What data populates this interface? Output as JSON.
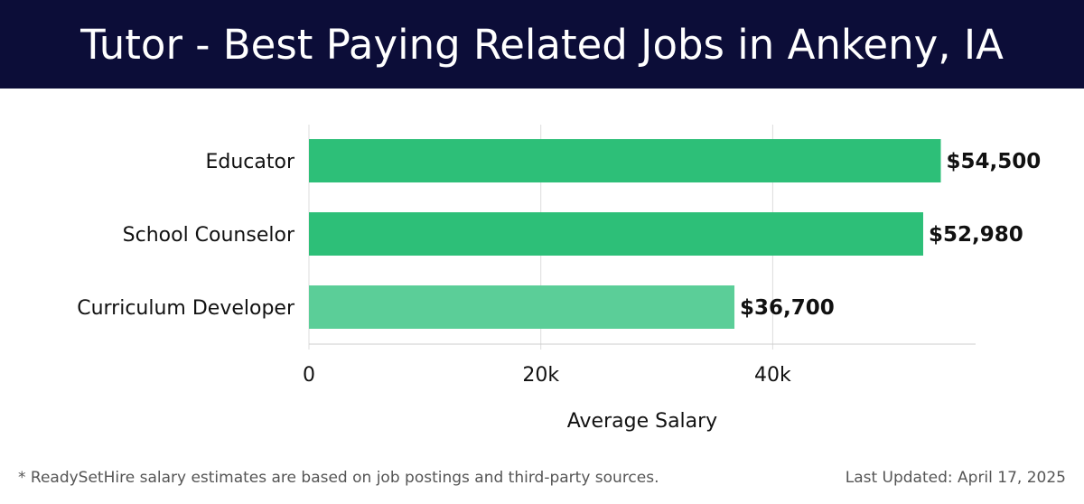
{
  "header": {
    "title": "Tutor - Best Paying Related Jobs in Ankeny, IA"
  },
  "footer": {
    "note": "* ReadySetHire salary estimates are based on job postings and third-party sources.",
    "updated": "Last Updated: April 17, 2025"
  },
  "colors": {
    "header_bg": "#0c0d38",
    "bar": "#2dbf78",
    "bar_light": "#5bce98",
    "grid": "#dddddd"
  },
  "chart_data": {
    "type": "bar",
    "orientation": "horizontal",
    "categories": [
      "Educator",
      "School Counselor",
      "Curriculum Developer"
    ],
    "values": [
      54500,
      52980,
      36700
    ],
    "value_labels": [
      "$54,500",
      "$52,980",
      "$36,700"
    ],
    "xlabel": "Average Salary",
    "ylabel": "",
    "xlim": [
      0,
      57500
    ],
    "x_ticks": [
      0,
      20000,
      40000
    ],
    "x_tick_labels": [
      "0",
      "20k",
      "40k"
    ],
    "grid": true
  }
}
